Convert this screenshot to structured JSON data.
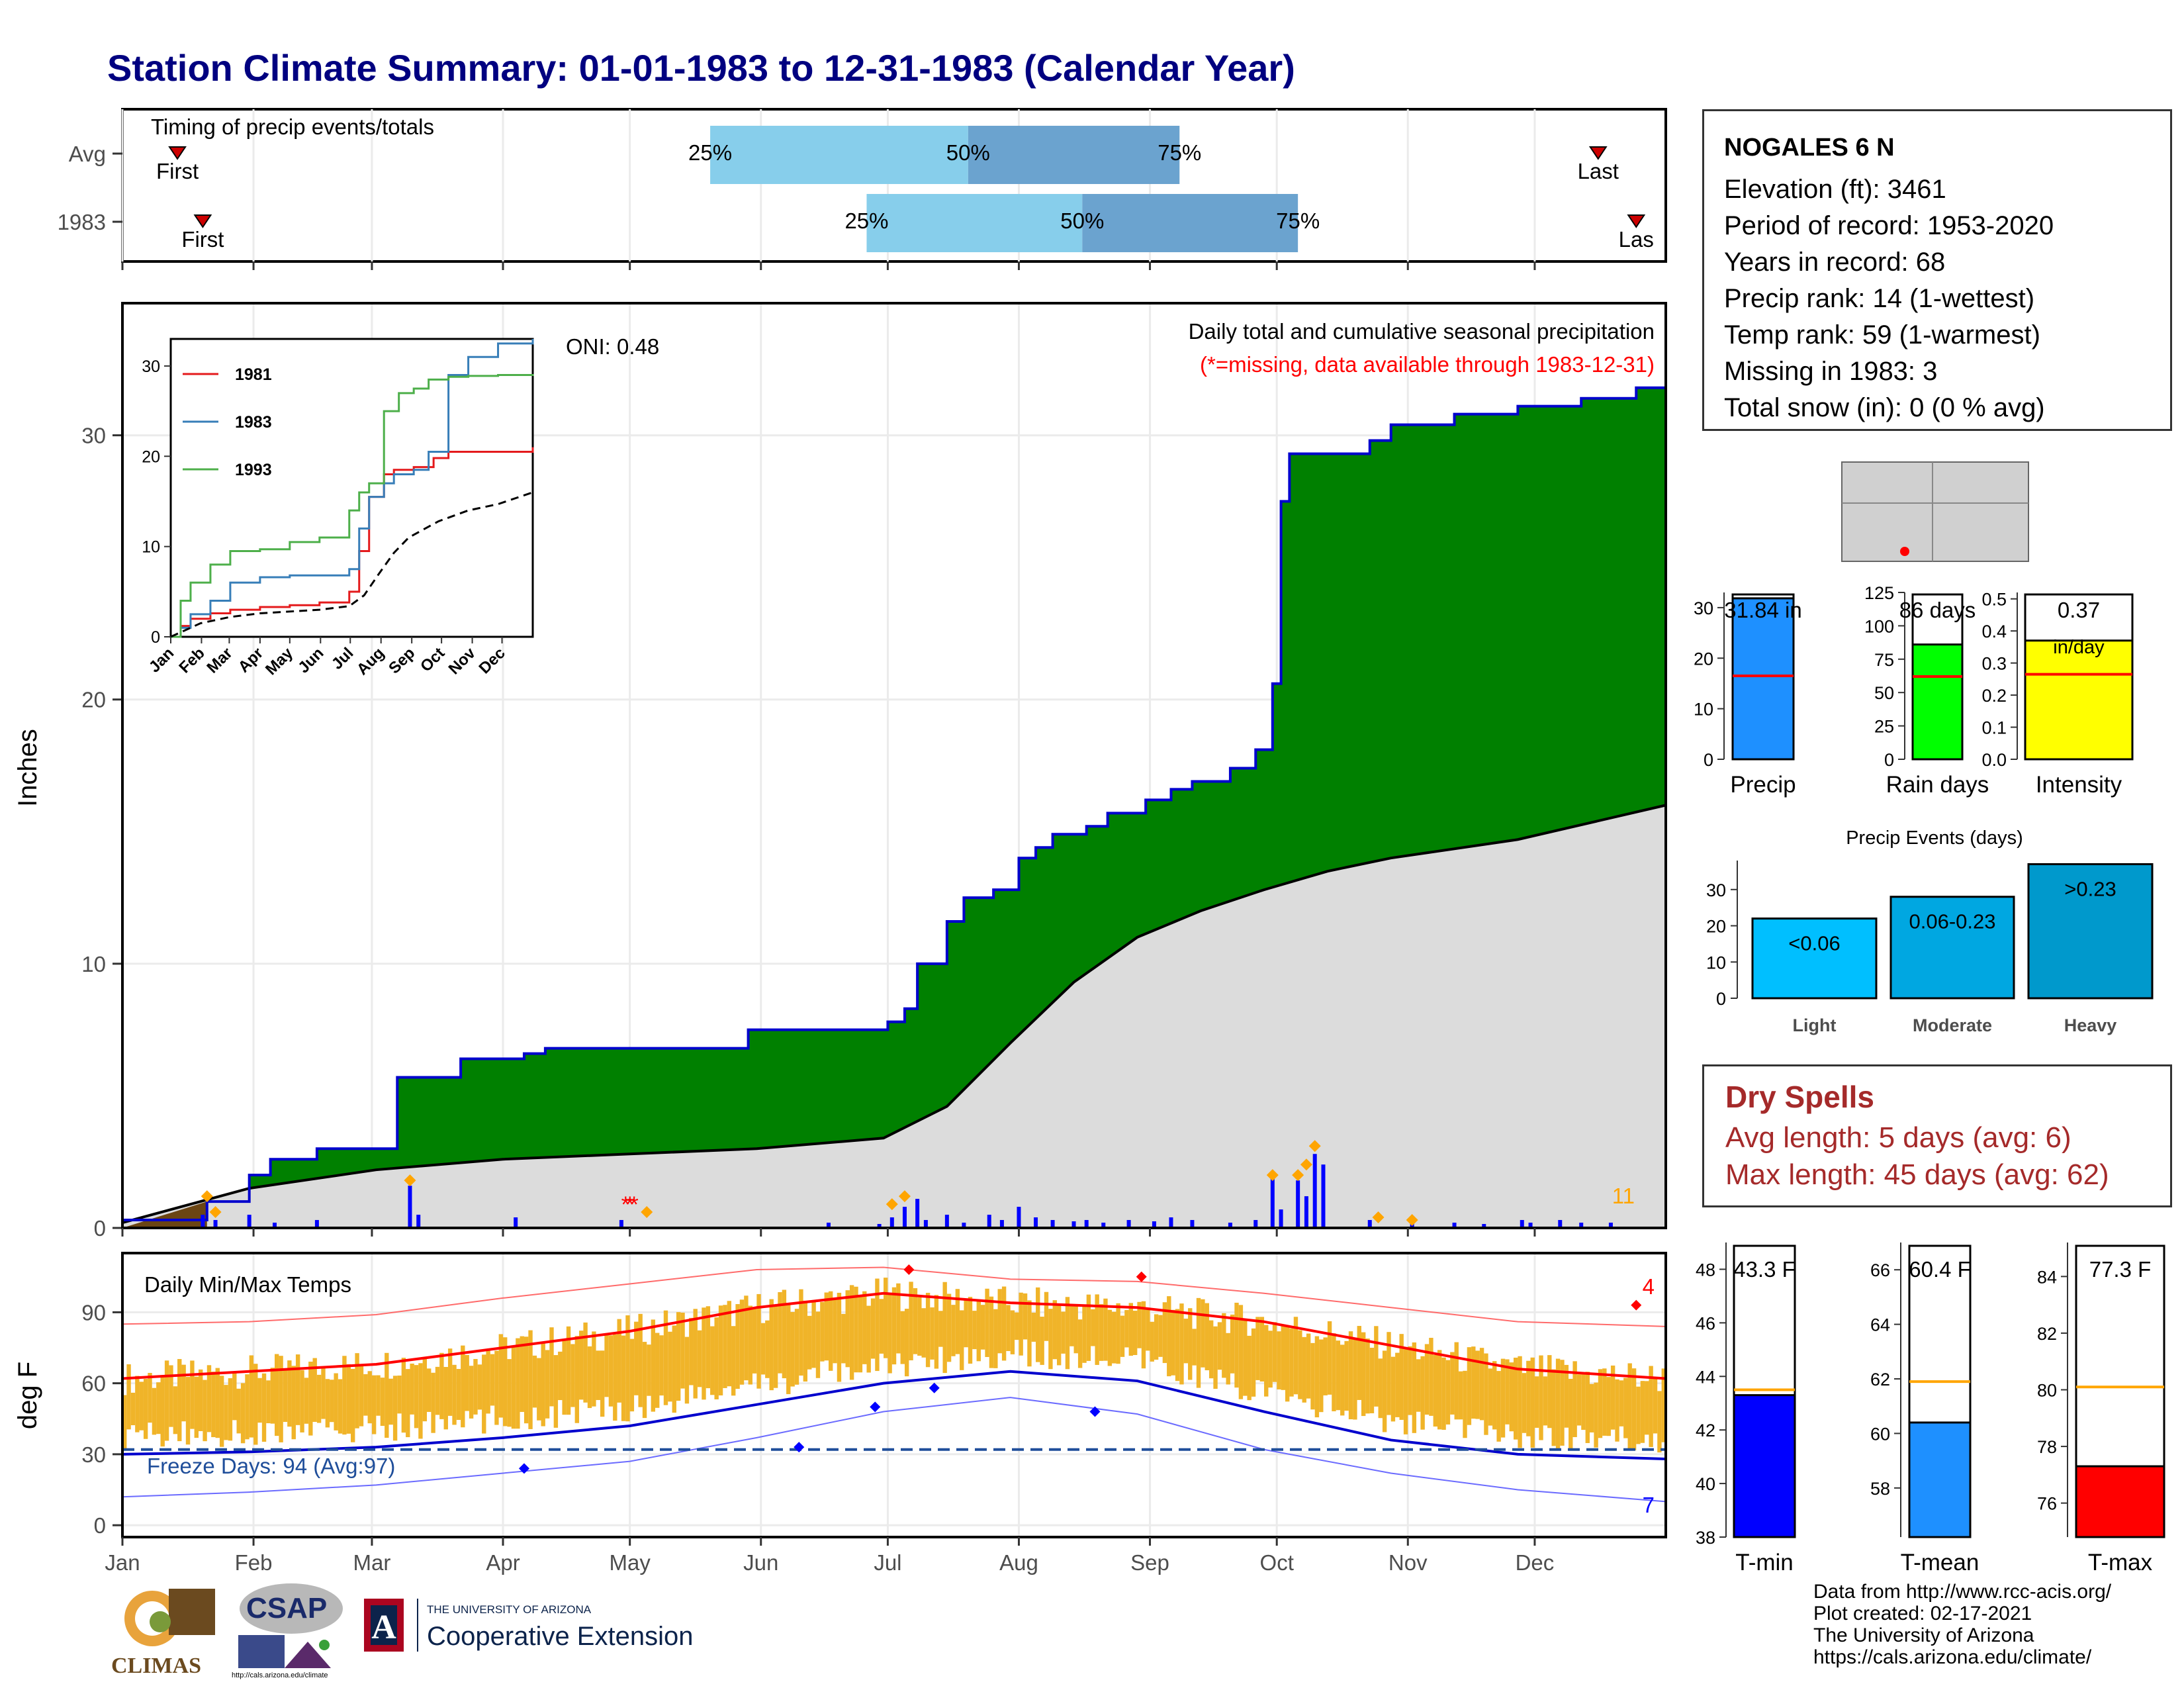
{
  "title": "Station Climate Summary: 01-01-1983 to 12-31-1983 (Calendar Year)",
  "timing": {
    "label": "Timing of precip events/totals",
    "rows": [
      {
        "label": "Avg",
        "first": "First",
        "last": "Last",
        "p25_doy": 139,
        "p50_doy": 200,
        "p75_doy": 250,
        "first_doy": 13,
        "last_doy": 349
      },
      {
        "label": "1983",
        "first": "First",
        "last": "Las",
        "p25_doy": 176,
        "p50_doy": 227,
        "p75_doy": 278,
        "first_doy": 19,
        "last_doy": 358
      }
    ],
    "pct_labels": [
      "25%",
      "50%",
      "75%"
    ]
  },
  "precip_panel": {
    "ylabel": "Inches",
    "yticks": [
      0,
      10,
      20,
      30
    ],
    "ymax": 35,
    "title_line1": "Daily total and cumulative seasonal precipitation",
    "title_line2": "(*=missing, data available through 1983-12-31)",
    "oni": "ONI: 0.48",
    "count_label": "11",
    "colors": {
      "cumulative": "#008000",
      "avg": "#dcdcdc",
      "line": "#0000cd",
      "daily": "#0000ff",
      "extreme": "#ffa500",
      "missing": "#ff0000"
    }
  },
  "inset": {
    "xticks": [
      "Jan",
      "Feb",
      "Mar",
      "Apr",
      "May",
      "Jun",
      "Jul",
      "Aug",
      "Sep",
      "Oct",
      "Nov",
      "Dec"
    ],
    "yticks": [
      0,
      10,
      20,
      30
    ],
    "legend": [
      "1981",
      "1983",
      "1993"
    ],
    "colors": [
      "#e41a1c",
      "#377eb8",
      "#4daf4a"
    ]
  },
  "temp_panel": {
    "ylabel": "deg F",
    "title": "Daily Min/Max Temps",
    "yticks": [
      0,
      30,
      60,
      90
    ],
    "freeze_label": "Freeze Days: 94 (Avg:97)",
    "count_hi": "4",
    "count_lo": "7"
  },
  "months": [
    "Jan",
    "Feb",
    "Mar",
    "Apr",
    "May",
    "Jun",
    "Jul",
    "Aug",
    "Sep",
    "Oct",
    "Nov",
    "Dec"
  ],
  "station": {
    "name": "NOGALES 6 N",
    "lines": [
      "Elevation (ft): 3461",
      "Period of record: 1953-2020",
      "Years in record: 68",
      "Precip rank: 14 (1-wettest)",
      "Temp rank: 59 (1-warmest)",
      "Missing in 1983: 3",
      "Total snow (in): 0 (0 % avg)"
    ]
  },
  "bars_top": [
    {
      "label": "Precip",
      "value_text": "31.84 in",
      "value": 31.84,
      "avg": 16.5,
      "ymax": 33,
      "yticks": [
        0,
        10,
        20,
        30
      ],
      "color": "#1e90ff"
    },
    {
      "label": "Rain days",
      "value_text": "86 days",
      "value": 86,
      "avg": 62,
      "ymax": 125,
      "yticks": [
        0,
        25,
        50,
        75,
        100,
        125
      ],
      "color": "#00ff00"
    },
    {
      "label": "Intensity",
      "value_text": "0.37",
      "value_text2": "in/day",
      "value": 0.37,
      "avg": 0.265,
      "ymax": 0.52,
      "yticks": [
        0.0,
        0.1,
        0.2,
        0.3,
        0.4,
        0.5
      ],
      "color": "#ffff00"
    }
  ],
  "precip_events": {
    "title": "Precip Events (days)",
    "categories": [
      "Light",
      "Moderate",
      "Heavy"
    ],
    "ranges": [
      "<0.06",
      "0.06-0.23",
      ">0.23"
    ],
    "values": [
      22,
      28,
      37
    ],
    "yticks": [
      0,
      10,
      20,
      30
    ],
    "colors": [
      "#00bfff",
      "#00a7e1",
      "#0099cc"
    ]
  },
  "dry_spells": {
    "title": "Dry Spells",
    "avg": "Avg length: 5 days (avg: 6)",
    "max": "Max length: 45 days (avg: 62)"
  },
  "temp_bars": [
    {
      "label": "T-min",
      "value_text": "43.3 F",
      "value": 43.3,
      "avg": 43.5,
      "ymin": 38,
      "ymax": 49,
      "yticks": [
        38,
        40,
        42,
        44,
        46,
        48
      ],
      "color": "#0000ff"
    },
    {
      "label": "T-mean",
      "value_text": "60.4 F",
      "value": 60.4,
      "avg": 61.9,
      "ymin": 56.2,
      "ymax": 67,
      "yticks": [
        58,
        60,
        62,
        64,
        66
      ],
      "color": "#1e90ff"
    },
    {
      "label": "T-max",
      "value_text": "77.3 F",
      "value": 77.3,
      "avg": 80.1,
      "ymin": 74.8,
      "ymax": 85.2,
      "yticks": [
        76,
        78,
        80,
        82,
        84
      ],
      "color": "#ff0000"
    }
  ],
  "credits": [
    "Data from http://www.rcc-acis.org/",
    "Plot created: 02-17-2021",
    "The University of Arizona",
    "https://cals.arizona.edu/climate/"
  ],
  "logos": {
    "climas": "CLIMAS",
    "csap": "CSAP",
    "csap_url": "http://cals.arizona.edu/climate",
    "ua_small": "THE UNIVERSITY OF ARIZONA",
    "ua_big": "Cooperative Extension"
  },
  "chart_data": [
    {
      "type": "area",
      "title": "Daily total and cumulative seasonal precipitation",
      "ylabel": "Inches",
      "ylim": [
        0,
        35
      ],
      "series": [
        {
          "name": "1983",
          "x_doy": [
            0,
            20,
            30,
            35,
            46,
            55,
            65,
            80,
            95,
            100,
            112,
            118,
            130,
            148,
            175,
            181,
            185,
            188,
            195,
            199,
            206,
            212,
            216,
            220,
            228,
            233,
            242,
            248,
            253,
            262,
            268,
            272,
            274,
            276,
            281,
            295,
            300,
            315,
            330,
            345,
            358,
            365
          ],
          "y": [
            0.3,
            1.0,
            2.0,
            2.6,
            3.0,
            3.0,
            5.7,
            6.4,
            6.6,
            6.8,
            6.8,
            6.8,
            6.8,
            7.5,
            7.5,
            7.8,
            8.3,
            10.0,
            11.6,
            12.5,
            12.8,
            14.0,
            14.4,
            14.9,
            15.2,
            15.7,
            16.2,
            16.6,
            16.9,
            17.4,
            18.1,
            20.6,
            27.5,
            29.3,
            29.3,
            29.8,
            30.4,
            30.8,
            31.1,
            31.4,
            31.8,
            31.84
          ]
        },
        {
          "name": "Avg",
          "x_doy": [
            0,
            30,
            60,
            90,
            120,
            150,
            180,
            195,
            210,
            225,
            240,
            255,
            270,
            285,
            300,
            330,
            365
          ],
          "y": [
            0.2,
            1.5,
            2.2,
            2.6,
            2.8,
            3.0,
            3.4,
            4.6,
            7.0,
            9.3,
            11.0,
            12.0,
            12.8,
            13.5,
            14.0,
            14.7,
            16.0
          ]
        }
      ]
    },
    {
      "type": "line",
      "title": "Daily Min/Max Temps",
      "ylabel": "deg F",
      "ylim": [
        -5,
        115
      ],
      "series": [
        {
          "name": "avg max",
          "x_doy": [
            0,
            30,
            60,
            90,
            120,
            150,
            180,
            210,
            240,
            270,
            300,
            330,
            365
          ],
          "y": [
            62,
            65,
            68,
            75,
            82,
            92,
            98,
            94,
            92,
            86,
            76,
            66,
            62
          ]
        },
        {
          "name": "avg min",
          "x_doy": [
            0,
            30,
            60,
            90,
            120,
            150,
            180,
            210,
            240,
            270,
            300,
            330,
            365
          ],
          "y": [
            30,
            31,
            33,
            37,
            42,
            51,
            60,
            65,
            61,
            48,
            36,
            30,
            28
          ]
        },
        {
          "name": "record max",
          "x_doy": [
            0,
            30,
            60,
            90,
            120,
            150,
            180,
            210,
            240,
            270,
            300,
            330,
            365
          ],
          "y": [
            85,
            86,
            89,
            96,
            102,
            108,
            109,
            104,
            103,
            98,
            92,
            86,
            84
          ]
        },
        {
          "name": "record min",
          "x_doy": [
            0,
            30,
            60,
            90,
            120,
            150,
            180,
            210,
            240,
            270,
            300,
            330,
            365
          ],
          "y": [
            12,
            14,
            17,
            22,
            27,
            37,
            48,
            54,
            47,
            32,
            22,
            15,
            10
          ]
        },
        {
          "name": "freeze",
          "x_doy": [
            0,
            365
          ],
          "y": [
            32,
            32
          ]
        }
      ]
    },
    {
      "type": "bar",
      "title": "Precip Events (days)",
      "categories": [
        "Light",
        "Moderate",
        "Heavy"
      ],
      "values": [
        22,
        28,
        37
      ],
      "ylim": [
        0,
        40
      ]
    }
  ]
}
